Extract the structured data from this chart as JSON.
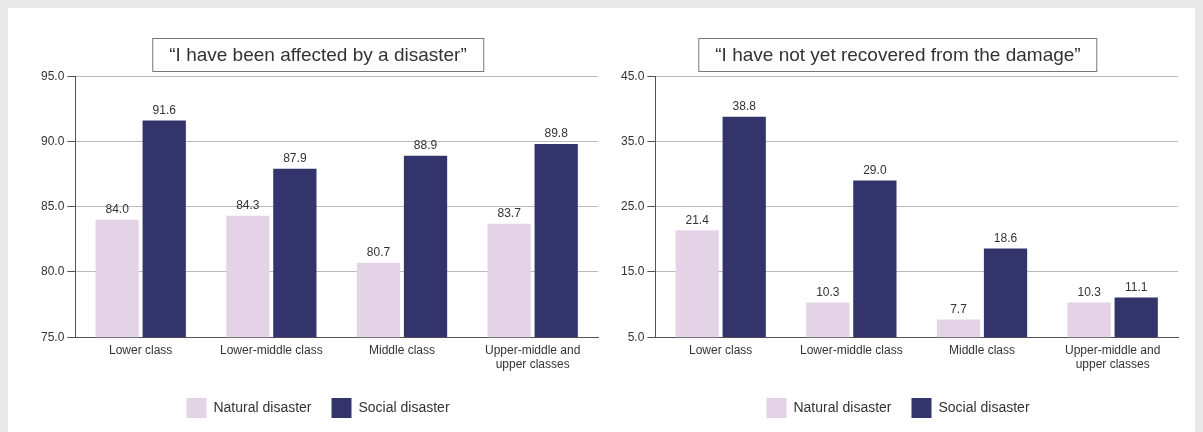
{
  "chart_data": [
    {
      "type": "bar",
      "title": "“I have been affected by a disaster”",
      "categories": [
        "Lower class",
        "Lower-middle class",
        "Middle class",
        "Upper-middle and upper classes"
      ],
      "series": [
        {
          "name": "Natural disaster",
          "color": "#e4d3e7",
          "values": [
            84.0,
            84.3,
            80.7,
            83.7
          ],
          "value_labels": [
            "84.0",
            "84.3",
            "80.7",
            "83.7"
          ]
        },
        {
          "name": "Social disaster",
          "color": "#33346b",
          "values": [
            91.6,
            87.9,
            88.9,
            89.8
          ],
          "value_labels": [
            "91.6",
            "87.9",
            "88.9",
            "89.8"
          ]
        }
      ],
      "ylim": [
        75,
        95
      ],
      "yticks": [
        {
          "value": 75,
          "label": "75.0"
        },
        {
          "value": 80,
          "label": "80.0"
        },
        {
          "value": 85,
          "label": "85.0"
        },
        {
          "value": 90,
          "label": "90.0"
        },
        {
          "value": 95,
          "label": "95.0"
        }
      ],
      "grid": "y",
      "legend": "bottom"
    },
    {
      "type": "bar",
      "title": "“I have not yet recovered from the damage”",
      "categories": [
        "Lower class",
        "Lower-middle class",
        "Middle class",
        "Upper-middle and upper classes"
      ],
      "series": [
        {
          "name": "Natural disaster",
          "color": "#e4d3e7",
          "values": [
            21.4,
            10.3,
            7.7,
            10.3
          ],
          "value_labels": [
            "21.4",
            "10.3",
            "7.7",
            "10.3"
          ]
        },
        {
          "name": "Social disaster",
          "color": "#33346b",
          "values": [
            38.8,
            29.0,
            18.6,
            11.1
          ],
          "value_labels": [
            "38.8",
            "29.0",
            "18.6",
            "11.1"
          ]
        }
      ],
      "ylim": [
        5,
        45
      ],
      "yticks": [
        {
          "value": 5,
          "label": "5.0"
        },
        {
          "value": 15,
          "label": "15.0"
        },
        {
          "value": 25,
          "label": "25.0"
        },
        {
          "value": 35,
          "label": "35.0"
        },
        {
          "value": 45,
          "label": "45.0"
        }
      ],
      "grid": "y",
      "legend": "bottom"
    }
  ]
}
